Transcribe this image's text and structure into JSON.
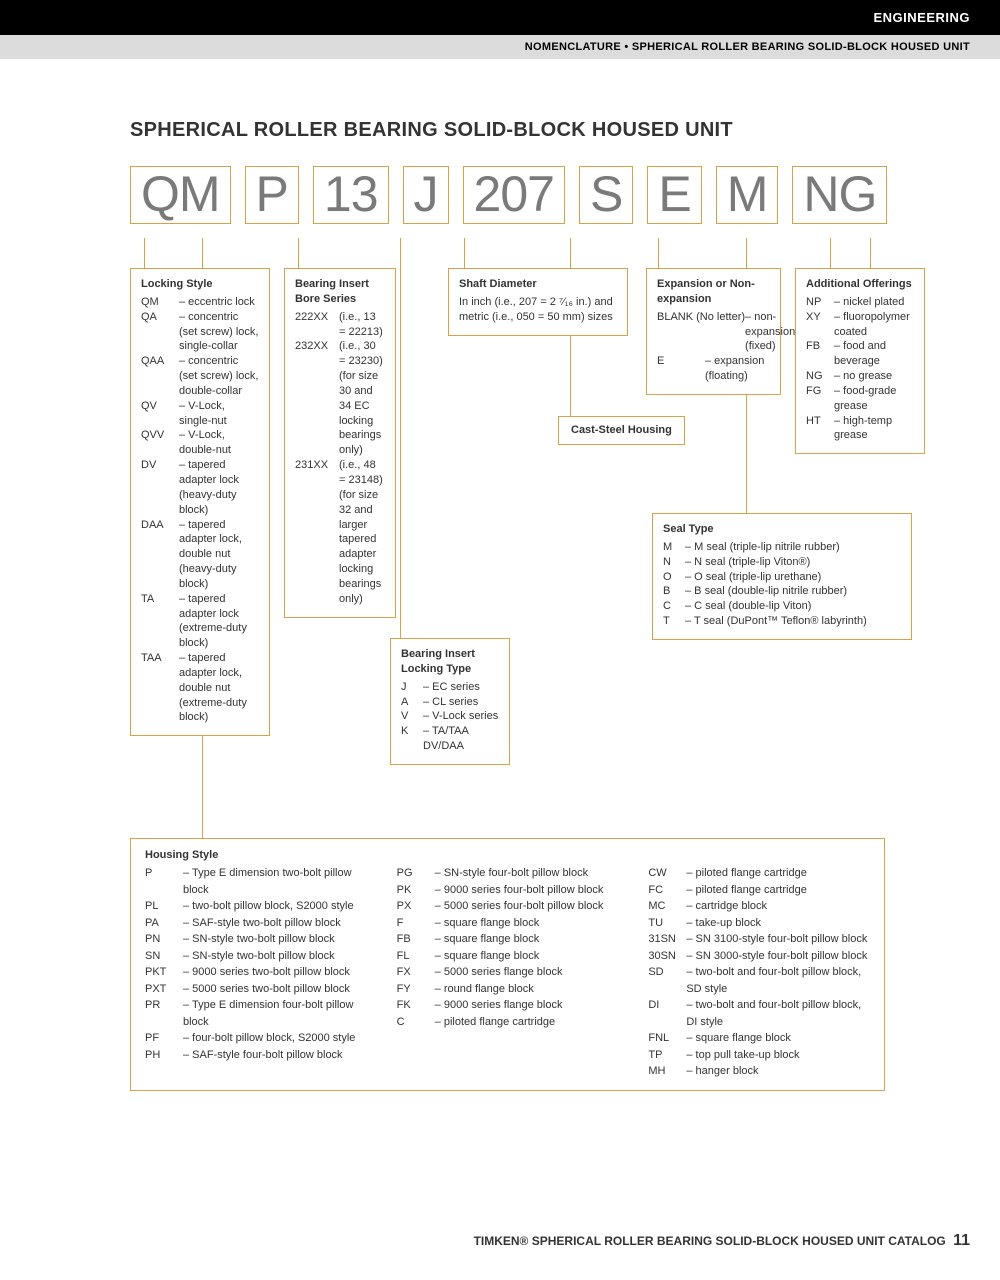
{
  "header": {
    "category": "ENGINEERING",
    "subtitle": "NOMENCLATURE • SPHERICAL ROLLER BEARING SOLID-BLOCK HOUSED UNIT"
  },
  "title": "SPHERICAL ROLLER BEARING SOLID-BLOCK HOUSED UNIT",
  "code_parts": [
    "QM",
    "P",
    "13",
    "J",
    "207",
    "S",
    "E",
    "M",
    "NG"
  ],
  "locking_style": {
    "title": "Locking Style",
    "items": [
      {
        "c": "QM",
        "d": "– eccentric lock"
      },
      {
        "c": "QA",
        "d": "– concentric (set screw) lock, single-collar"
      },
      {
        "c": "QAA",
        "d": "– concentric (set screw) lock, double-collar"
      },
      {
        "c": "QV",
        "d": "– V-Lock, single-nut"
      },
      {
        "c": "QVV",
        "d": "– V-Lock, double-nut"
      },
      {
        "c": "DV",
        "d": "– tapered adapter lock (heavy-duty block)"
      },
      {
        "c": "DAA",
        "d": "– tapered adapter lock, double nut (heavy-duty block)"
      },
      {
        "c": "TA",
        "d": "– tapered adapter lock (extreme-duty block)"
      },
      {
        "c": "TAA",
        "d": "– tapered adapter lock, double nut (extreme-duty block)"
      }
    ]
  },
  "bore_series": {
    "title": "Bearing Insert Bore Series",
    "items": [
      {
        "c": "222XX",
        "d": "(i.e., 13 = 22213)"
      },
      {
        "c": "232XX",
        "d": "(i.e., 30 = 23230) (for size 30 and 34 EC locking bearings only)"
      },
      {
        "c": "231XX",
        "d": "(i.e., 48 = 23148) (for size 32 and larger tapered adapter locking bearings only)"
      }
    ]
  },
  "locking_type": {
    "title": "Bearing Insert Locking Type",
    "items": [
      {
        "c": "J",
        "d": "– EC series"
      },
      {
        "c": "A",
        "d": "– CL series"
      },
      {
        "c": "V",
        "d": "– V-Lock series"
      },
      {
        "c": "K",
        "d": "– TA/TAA DV/DAA"
      }
    ]
  },
  "shaft": {
    "title": "Shaft Diameter",
    "text": "In inch (i.e., 207 = 2 ⁷⁄₁₆ in.) and metric (i.e., 050 = 50 mm) sizes"
  },
  "cast_steel": "Cast-Steel Housing",
  "expansion": {
    "title": "Expansion or Non-expansion",
    "items": [
      {
        "c": "BLANK (No letter)",
        "d": "– non-expansion (fixed)"
      },
      {
        "c": "E",
        "d": "– expansion (floating)"
      }
    ]
  },
  "seal": {
    "title": "Seal Type",
    "items": [
      {
        "c": "M",
        "d": "– M seal (triple-lip nitrile rubber)"
      },
      {
        "c": "N",
        "d": "– N seal (triple-lip Viton®)"
      },
      {
        "c": "O",
        "d": "– O seal (triple-lip urethane)"
      },
      {
        "c": "B",
        "d": "– B seal (double-lip nitrile rubber)"
      },
      {
        "c": "C",
        "d": "– C seal (double-lip Viton)"
      },
      {
        "c": "T",
        "d": "– T seal (DuPont™ Teflon® labyrinth)"
      }
    ]
  },
  "additional": {
    "title": "Additional Offerings",
    "items": [
      {
        "c": "NP",
        "d": "– nickel plated"
      },
      {
        "c": "XY",
        "d": "– fluoropolymer coated"
      },
      {
        "c": "FB",
        "d": "– food and beverage"
      },
      {
        "c": "NG",
        "d": "– no grease"
      },
      {
        "c": "FG",
        "d": "– food-grade grease"
      },
      {
        "c": "HT",
        "d": "– high-temp grease"
      }
    ]
  },
  "housing": {
    "title": "Housing Style",
    "col1": [
      {
        "c": "P",
        "d": "– Type E dimension two-bolt pillow block"
      },
      {
        "c": "PL",
        "d": "– two-bolt pillow block, S2000 style"
      },
      {
        "c": "PA",
        "d": "– SAF-style two-bolt pillow block"
      },
      {
        "c": "PN",
        "d": "– SN-style two-bolt pillow block"
      },
      {
        "c": "SN",
        "d": "– SN-style two-bolt pillow block"
      },
      {
        "c": "PKT",
        "d": "– 9000 series two-bolt pillow block"
      },
      {
        "c": "PXT",
        "d": "– 5000 series two-bolt pillow block"
      },
      {
        "c": "PR",
        "d": "– Type E dimension four-bolt pillow block"
      },
      {
        "c": "PF",
        "d": "– four-bolt pillow block, S2000 style"
      },
      {
        "c": "PH",
        "d": "– SAF-style four-bolt pillow block"
      }
    ],
    "col2": [
      {
        "c": "PG",
        "d": "– SN-style four-bolt pillow block"
      },
      {
        "c": "PK",
        "d": "– 9000 series four-bolt pillow block"
      },
      {
        "c": "PX",
        "d": "– 5000 series four-bolt pillow block"
      },
      {
        "c": "F",
        "d": "– square flange block"
      },
      {
        "c": "FB",
        "d": "– square flange block"
      },
      {
        "c": "FL",
        "d": "– square flange block"
      },
      {
        "c": "FX",
        "d": "– 5000 series flange block"
      },
      {
        "c": "FY",
        "d": "– round flange block"
      },
      {
        "c": "FK",
        "d": "– 9000 series flange block"
      },
      {
        "c": "C",
        "d": "– piloted flange cartridge"
      }
    ],
    "col3": [
      {
        "c": "CW",
        "d": "– piloted flange cartridge"
      },
      {
        "c": "FC",
        "d": "– piloted flange cartridge"
      },
      {
        "c": "MC",
        "d": "– cartridge block"
      },
      {
        "c": "TU",
        "d": "– take-up block"
      },
      {
        "c": "31SN",
        "d": "– SN 3100-style four-bolt pillow block"
      },
      {
        "c": "30SN",
        "d": "– SN 3000-style four-bolt pillow block"
      },
      {
        "c": "SD",
        "d": "– two-bolt and four-bolt pillow block, SD style"
      },
      {
        "c": "DI",
        "d": "– two-bolt and four-bolt pillow block, DI style"
      },
      {
        "c": "FNL",
        "d": "– square flange block"
      },
      {
        "c": "TP",
        "d": "– top pull take-up block"
      },
      {
        "c": "MH",
        "d": "– hanger block"
      }
    ]
  },
  "footer": {
    "text": "TIMKEN® SPHERICAL ROLLER BEARING SOLID-BLOCK HOUSED UNIT CATALOG",
    "page": "11"
  },
  "colors": {
    "box_border": "#d9a24a",
    "code_text": "#7a7a7a",
    "gray_bar": "#dcdcdc"
  }
}
